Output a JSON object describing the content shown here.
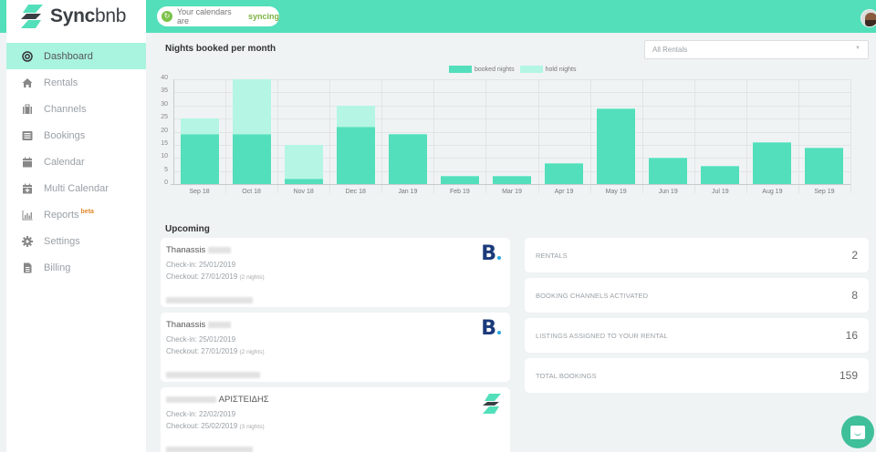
{
  "app": {
    "brand_bold": "Sync",
    "brand_light": "bnb",
    "sync_status_prefix": "Your calendars are",
    "sync_status_highlight": "syncing",
    "accent_color": "#52dfba"
  },
  "sidebar": {
    "items": [
      {
        "label": "Dashboard",
        "icon": "dashboard-target-icon",
        "active": true
      },
      {
        "label": "Rentals",
        "icon": "home-icon"
      },
      {
        "label": "Channels",
        "icon": "briefcase-icon"
      },
      {
        "label": "Bookings",
        "icon": "list-icon"
      },
      {
        "label": "Calendar",
        "icon": "calendar-icon"
      },
      {
        "label": "Multi Calendar",
        "icon": "calendar-plus-icon"
      },
      {
        "label": "Reports",
        "icon": "bar-chart-icon",
        "badge": "beta"
      },
      {
        "label": "Settings",
        "icon": "gear-icon"
      },
      {
        "label": "Billing",
        "icon": "file-icon"
      }
    ]
  },
  "main": {
    "chart_title": "Nights booked per month",
    "rental_filter": "All Rentals",
    "upcoming_title": "Upcoming",
    "bookings": [
      {
        "guest": "Thanassis",
        "checkin": "Check-in: 25/01/2019",
        "checkout": "Checkout: 27/01/2019",
        "nights": "(2 nights)",
        "channel": "booking-com-logo"
      },
      {
        "guest": "Thanassis",
        "checkin": "Check-in: 25/01/2019",
        "checkout": "Checkout: 27/01/2019",
        "nights": "(2 nights)",
        "channel": "booking-com-logo"
      },
      {
        "guest": "ΑΡΙΣΤΕΙΔΗΣ",
        "checkin": "Check-in: 22/02/2019",
        "checkout": "Checkout: 25/02/2019",
        "nights": "(3 nights)",
        "channel": "syncbnb-logo"
      }
    ],
    "stats": [
      {
        "label": "RENTALS",
        "value": "2"
      },
      {
        "label": "BOOKING CHANNELS ACTIVATED",
        "value": "8"
      },
      {
        "label": "LISTINGS ASSIGNED TO YOUR RENTAL",
        "value": "16"
      },
      {
        "label": "TOTAL BOOKINGS",
        "value": "159"
      }
    ]
  },
  "chart_data": {
    "type": "bar",
    "stacked": true,
    "title": "Nights booked per month",
    "xlabel": "",
    "ylabel": "",
    "ylim": [
      0,
      40
    ],
    "yticks": [
      0,
      5,
      10,
      15,
      20,
      25,
      30,
      35,
      40
    ],
    "grid": true,
    "legend_position": "top",
    "categories": [
      "Sep 18",
      "Oct 18",
      "Nov 18",
      "Dec 18",
      "Jan 19",
      "Feb 19",
      "Mar 19",
      "Apr 19",
      "May 19",
      "Jun 19",
      "Jul 19",
      "Aug 19",
      "Sep 19"
    ],
    "series": [
      {
        "name": "booked nights",
        "color": "#53dfbc",
        "values": [
          19,
          19,
          2,
          22,
          19,
          3,
          3,
          8,
          29,
          10,
          7,
          16,
          14
        ]
      },
      {
        "name": "hold nights",
        "color": "#b4f6e3",
        "values": [
          6,
          21,
          13,
          8,
          0,
          0,
          0,
          0,
          0,
          0,
          0,
          0,
          0
        ]
      }
    ]
  }
}
